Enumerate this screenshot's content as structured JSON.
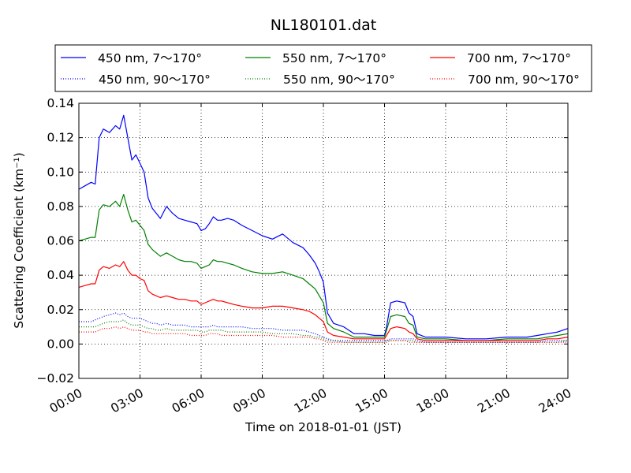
{
  "chart_data": {
    "type": "line",
    "title": "NL180101.dat",
    "xlabel": "Time on 2018-01-01 (JST)",
    "ylabel": "Scattering Coefficient (km⁻¹)",
    "xlim": [
      0,
      24
    ],
    "ylim": [
      -0.02,
      0.14
    ],
    "grid": true,
    "legend_position": "top, outside plot, 3 columns",
    "x_tick_labels": [
      "00:00",
      "03:00",
      "06:00",
      "09:00",
      "12:00",
      "15:00",
      "18:00",
      "21:00",
      "24:00"
    ],
    "y_tick_labels": [
      "−0.02",
      "0.00",
      "0.02",
      "0.04",
      "0.06",
      "0.08",
      "0.10",
      "0.12",
      "0.14"
    ],
    "x_hours": [
      0,
      0.3,
      0.6,
      0.8,
      1.0,
      1.2,
      1.5,
      1.8,
      2.0,
      2.2,
      2.4,
      2.6,
      2.8,
      3.0,
      3.2,
      3.4,
      3.6,
      3.8,
      4.0,
      4.3,
      4.6,
      4.9,
      5.2,
      5.5,
      5.8,
      6.0,
      6.2,
      6.4,
      6.6,
      6.8,
      7.0,
      7.3,
      7.6,
      8.0,
      8.5,
      9.0,
      9.5,
      10.0,
      10.5,
      11.0,
      11.3,
      11.6,
      11.8,
      12.0,
      12.2,
      12.5,
      13.0,
      13.5,
      14.0,
      14.5,
      15.0,
      15.1,
      15.3,
      15.6,
      16.0,
      16.2,
      16.4,
      16.6,
      17.0,
      18.0,
      19.0,
      20.0,
      21.0,
      22.0,
      22.5,
      23.0,
      23.5,
      24.0
    ],
    "series": [
      {
        "name": "450 nm, 7～170°",
        "color": "#0000ff",
        "style": "solid",
        "values": [
          0.09,
          0.092,
          0.094,
          0.093,
          0.12,
          0.125,
          0.123,
          0.127,
          0.125,
          0.133,
          0.12,
          0.107,
          0.11,
          0.105,
          0.1,
          0.085,
          0.079,
          0.076,
          0.073,
          0.08,
          0.076,
          0.073,
          0.072,
          0.071,
          0.07,
          0.066,
          0.067,
          0.07,
          0.074,
          0.072,
          0.072,
          0.073,
          0.072,
          0.069,
          0.066,
          0.063,
          0.061,
          0.064,
          0.059,
          0.056,
          0.052,
          0.047,
          0.042,
          0.036,
          0.018,
          0.012,
          0.01,
          0.006,
          0.006,
          0.005,
          0.005,
          0.01,
          0.024,
          0.025,
          0.024,
          0.018,
          0.016,
          0.006,
          0.004,
          0.004,
          0.003,
          0.003,
          0.004,
          0.004,
          0.005,
          0.006,
          0.007,
          0.009
        ]
      },
      {
        "name": "550 nm, 7～170°",
        "color": "#008000",
        "style": "solid",
        "values": [
          0.06,
          0.061,
          0.062,
          0.062,
          0.078,
          0.081,
          0.08,
          0.083,
          0.08,
          0.087,
          0.078,
          0.071,
          0.072,
          0.069,
          0.066,
          0.058,
          0.055,
          0.053,
          0.051,
          0.053,
          0.051,
          0.049,
          0.048,
          0.048,
          0.047,
          0.044,
          0.045,
          0.046,
          0.049,
          0.048,
          0.048,
          0.047,
          0.046,
          0.044,
          0.042,
          0.041,
          0.041,
          0.042,
          0.04,
          0.038,
          0.035,
          0.032,
          0.028,
          0.024,
          0.012,
          0.009,
          0.007,
          0.004,
          0.004,
          0.004,
          0.004,
          0.008,
          0.016,
          0.017,
          0.016,
          0.012,
          0.011,
          0.004,
          0.003,
          0.003,
          0.002,
          0.002,
          0.003,
          0.003,
          0.003,
          0.004,
          0.005,
          0.006
        ]
      },
      {
        "name": "700 nm, 7～170°",
        "color": "#ff0000",
        "style": "solid",
        "values": [
          0.033,
          0.034,
          0.035,
          0.035,
          0.043,
          0.045,
          0.044,
          0.046,
          0.045,
          0.048,
          0.043,
          0.04,
          0.04,
          0.038,
          0.037,
          0.031,
          0.029,
          0.028,
          0.027,
          0.028,
          0.027,
          0.026,
          0.026,
          0.025,
          0.025,
          0.023,
          0.024,
          0.025,
          0.026,
          0.025,
          0.025,
          0.024,
          0.023,
          0.022,
          0.021,
          0.021,
          0.022,
          0.022,
          0.021,
          0.02,
          0.019,
          0.017,
          0.015,
          0.013,
          0.007,
          0.005,
          0.004,
          0.003,
          0.003,
          0.003,
          0.003,
          0.005,
          0.009,
          0.01,
          0.009,
          0.007,
          0.006,
          0.003,
          0.002,
          0.002,
          0.002,
          0.002,
          0.002,
          0.002,
          0.002,
          0.003,
          0.003,
          0.004
        ]
      },
      {
        "name": "450 nm, 90～170°",
        "color": "#0000ff",
        "style": "dotted",
        "values": [
          0.013,
          0.013,
          0.013,
          0.014,
          0.015,
          0.016,
          0.017,
          0.018,
          0.017,
          0.018,
          0.016,
          0.015,
          0.015,
          0.015,
          0.014,
          0.013,
          0.012,
          0.012,
          0.011,
          0.012,
          0.011,
          0.011,
          0.011,
          0.01,
          0.01,
          0.01,
          0.01,
          0.01,
          0.011,
          0.01,
          0.01,
          0.01,
          0.01,
          0.01,
          0.009,
          0.009,
          0.009,
          0.008,
          0.008,
          0.008,
          0.007,
          0.006,
          0.005,
          0.004,
          0.003,
          0.002,
          0.002,
          0.002,
          0.002,
          0.002,
          0.002,
          0.002,
          0.003,
          0.003,
          0.003,
          0.003,
          0.003,
          0.002,
          0.001,
          0.001,
          0.001,
          0.001,
          0.001,
          0.001,
          0.001,
          0.002,
          0.002,
          0.002
        ]
      },
      {
        "name": "550 nm, 90～170°",
        "color": "#008000",
        "style": "dotted",
        "values": [
          0.01,
          0.01,
          0.01,
          0.01,
          0.011,
          0.012,
          0.013,
          0.013,
          0.013,
          0.014,
          0.012,
          0.011,
          0.011,
          0.011,
          0.01,
          0.009,
          0.009,
          0.008,
          0.008,
          0.009,
          0.008,
          0.008,
          0.008,
          0.008,
          0.008,
          0.007,
          0.007,
          0.008,
          0.008,
          0.008,
          0.008,
          0.007,
          0.007,
          0.007,
          0.007,
          0.007,
          0.006,
          0.006,
          0.006,
          0.005,
          0.005,
          0.004,
          0.004,
          0.003,
          0.002,
          0.002,
          0.001,
          0.001,
          0.001,
          0.001,
          0.001,
          0.002,
          0.002,
          0.002,
          0.002,
          0.002,
          0.002,
          0.001,
          0.001,
          0.001,
          0.001,
          0.001,
          0.001,
          0.001,
          0.001,
          0.001,
          0.001,
          0.002
        ]
      },
      {
        "name": "700 nm, 90～170°",
        "color": "#ff0000",
        "style": "dotted",
        "values": [
          0.007,
          0.007,
          0.007,
          0.007,
          0.008,
          0.009,
          0.009,
          0.01,
          0.009,
          0.01,
          0.009,
          0.008,
          0.008,
          0.008,
          0.007,
          0.007,
          0.006,
          0.006,
          0.006,
          0.006,
          0.006,
          0.006,
          0.006,
          0.005,
          0.005,
          0.005,
          0.005,
          0.006,
          0.006,
          0.006,
          0.005,
          0.005,
          0.005,
          0.005,
          0.005,
          0.005,
          0.005,
          0.004,
          0.004,
          0.004,
          0.004,
          0.003,
          0.003,
          0.002,
          0.001,
          0.001,
          0.001,
          0.001,
          0.001,
          0.001,
          0.001,
          0.001,
          0.002,
          0.002,
          0.002,
          0.001,
          0.001,
          0.001,
          0.001,
          0.001,
          0.001,
          0.001,
          0.001,
          0.001,
          0.001,
          0.001,
          0.001,
          0.001
        ]
      }
    ]
  }
}
